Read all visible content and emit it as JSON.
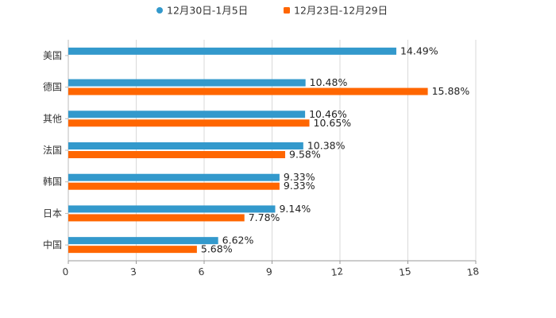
{
  "chart_data": {
    "type": "bar",
    "orientation": "horizontal",
    "title": "",
    "xlabel": "",
    "ylabel": "",
    "categories": [
      "美国",
      "德国",
      "其他",
      "法国",
      "韩国",
      "日本",
      "中国"
    ],
    "series": [
      {
        "name": "12月30日-1月5日",
        "color": "#3399CC",
        "values": [
          14.49,
          10.48,
          10.46,
          10.38,
          9.33,
          9.14,
          6.62
        ],
        "labels": [
          "14.49%",
          "10.48%",
          "10.46%",
          "10.38%",
          "9.33%",
          "9.14%",
          "6.62%"
        ]
      },
      {
        "name": "12月23日-12月29日",
        "color": "#FF6600",
        "values": [
          null,
          15.88,
          10.65,
          9.58,
          9.33,
          7.78,
          5.68
        ],
        "labels": [
          null,
          "15.88%",
          "10.65%",
          "9.58%",
          "9.33%",
          "7.78%",
          "5.68%"
        ]
      }
    ],
    "xlim": [
      0,
      18
    ],
    "xticks": [
      0,
      3,
      6,
      9,
      12,
      15,
      18
    ],
    "xtick_labels": [
      "0",
      "3",
      "6",
      "9",
      "12",
      "15",
      "18"
    ],
    "grid": true,
    "legend_position": "top-center"
  }
}
